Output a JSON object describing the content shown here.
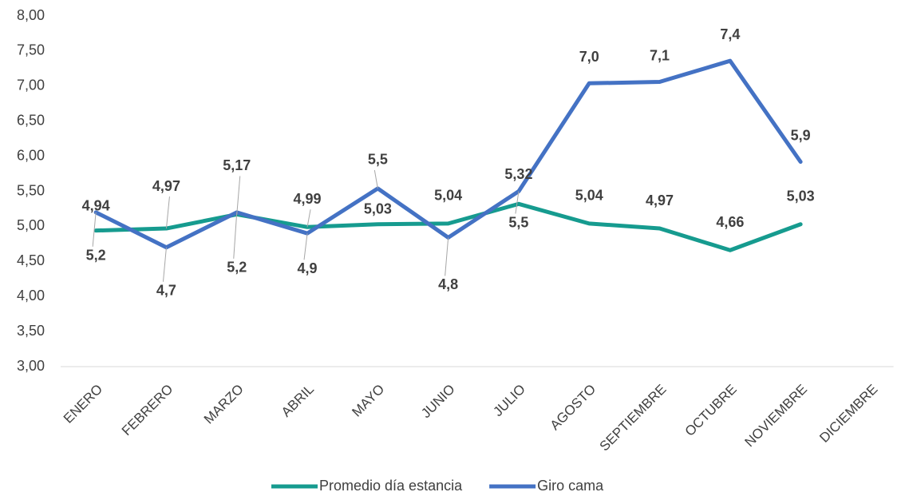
{
  "chart_data": {
    "type": "line",
    "categories": [
      "ENERO",
      "FEBRERO",
      "MARZO",
      "ABRIL",
      "MAYO",
      "JUNIO",
      "JULIO",
      "AGOSTO",
      "SEPTIEMBRE",
      "OCTUBRE",
      "NOVIEMBRE",
      "DICIEMBRE"
    ],
    "series": [
      {
        "name": "Promedio día estancia",
        "color": "#169b8f",
        "values": [
          4.94,
          4.97,
          5.17,
          4.99,
          5.03,
          5.04,
          5.32,
          5.04,
          4.97,
          4.66,
          5.03,
          null
        ],
        "value_labels": [
          "4,94",
          "4,97",
          "5,17",
          "4,99",
          "5,03",
          "5,04",
          "5,32",
          "5,04",
          "4,97",
          "4,66",
          "5,03"
        ]
      },
      {
        "name": "Giro cama",
        "color": "#4472c4",
        "values": [
          5.2,
          4.7,
          5.2,
          4.9,
          5.54,
          4.84,
          5.5,
          7.04,
          7.06,
          7.36,
          5.92,
          null
        ],
        "value_labels": [
          "5,2",
          "4,7",
          "5,2",
          "4,9",
          "5,5",
          "4,8",
          "5,5",
          "7,0",
          "7,1",
          "7,4",
          "5,9"
        ]
      }
    ],
    "ylim": [
      3,
      8
    ],
    "yticks": [
      {
        "value": 3,
        "label": "3,00"
      },
      {
        "value": 3.5,
        "label": "3,50"
      },
      {
        "value": 4,
        "label": "4,00"
      },
      {
        "value": 4.5,
        "label": "4,50"
      },
      {
        "value": 5,
        "label": "5,00"
      },
      {
        "value": 5.5,
        "label": "5,50"
      },
      {
        "value": 6,
        "label": "6,00"
      },
      {
        "value": 6.5,
        "label": "6,50"
      },
      {
        "value": 7,
        "label": "7,00"
      },
      {
        "value": 7.5,
        "label": "7,50"
      },
      {
        "value": 8,
        "label": "8,00"
      }
    ],
    "legend": "bottom"
  }
}
